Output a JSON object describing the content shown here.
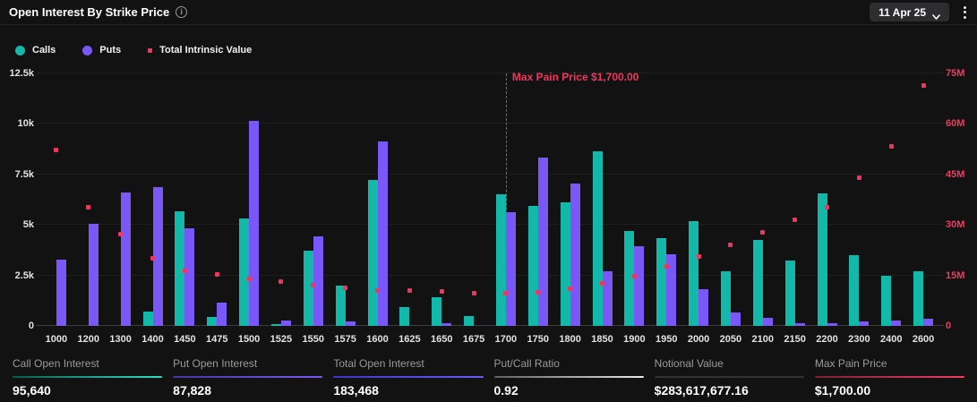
{
  "header": {
    "title": "Open Interest By Strike Price",
    "date_selector": {
      "label": "11 Apr 25"
    }
  },
  "legend": [
    {
      "label": "Calls",
      "marker": "circle",
      "color": "#13b8a8"
    },
    {
      "label": "Puts",
      "marker": "circle",
      "color": "#7a58f5"
    },
    {
      "label": "Total Intrinsic Value",
      "marker": "square",
      "color": "#f0355e"
    }
  ],
  "chart_data": {
    "type": "bar",
    "title": "Open Interest By Strike Price",
    "categories": [
      1000,
      1200,
      1300,
      1400,
      1450,
      1475,
      1500,
      1525,
      1550,
      1575,
      1600,
      1625,
      1650,
      1675,
      1700,
      1750,
      1800,
      1850,
      1900,
      1950,
      2000,
      2050,
      2100,
      2150,
      2200,
      2300,
      2400,
      2600
    ],
    "series": [
      {
        "name": "Calls",
        "type": "bar",
        "axis": "left",
        "color": "#13b8a8",
        "values": [
          0,
          0,
          0,
          700,
          5660,
          430,
          5310,
          60,
          3720,
          2000,
          7230,
          920,
          1430,
          490,
          6500,
          5940,
          6120,
          8630,
          4720,
          4360,
          5200,
          2700,
          4260,
          3240,
          6560,
          3500,
          2500,
          2720
        ]
      },
      {
        "name": "Puts",
        "type": "bar",
        "axis": "left",
        "color": "#7a58f5",
        "values": [
          3270,
          5050,
          6600,
          6850,
          4840,
          1140,
          10150,
          280,
          4430,
          200,
          9150,
          0,
          120,
          0,
          5620,
          8340,
          7030,
          2700,
          3940,
          3540,
          1810,
          660,
          400,
          150,
          130,
          230,
          250,
          370
        ]
      },
      {
        "name": "Total Intrinsic Value",
        "type": "scatter",
        "axis": "right",
        "color": "#f0355e",
        "unit": "M",
        "values": [
          52.1,
          35.2,
          27.0,
          19.9,
          16.3,
          15.1,
          13.8,
          12.9,
          11.9,
          11.2,
          10.5,
          10.3,
          10.1,
          9.7,
          9.5,
          9.9,
          10.8,
          12.4,
          14.7,
          17.5,
          20.6,
          24.0,
          27.6,
          31.3,
          35.2,
          43.9,
          53.2,
          71.4
        ]
      }
    ],
    "y_left": {
      "ticks": [
        "0",
        "2.5k",
        "5k",
        "7.5k",
        "10k",
        "12.5k"
      ],
      "max": 12500
    },
    "y_right": {
      "ticks": [
        "0",
        "15M",
        "30M",
        "45M",
        "60M",
        "75M"
      ],
      "max": 75
    },
    "xlabel": "",
    "ylabel": "",
    "grid": true,
    "legend_position": "top-left",
    "annotation": {
      "label": "Max Pain Price $1,700.00",
      "strike": 1700
    }
  },
  "stats": [
    {
      "label": "Call Open Interest",
      "value": "95,640",
      "accent": "teal"
    },
    {
      "label": "Put Open Interest",
      "value": "87,828",
      "accent": "purple"
    },
    {
      "label": "Total Open Interest",
      "value": "183,468",
      "accent": "blue"
    },
    {
      "label": "Put/Call Ratio",
      "value": "0.92",
      "accent": "white"
    },
    {
      "label": "Notional Value",
      "value": "$283,617,677.16",
      "accent": "gray"
    },
    {
      "label": "Max Pain Price",
      "value": "$1,700.00",
      "accent": "red"
    }
  ]
}
